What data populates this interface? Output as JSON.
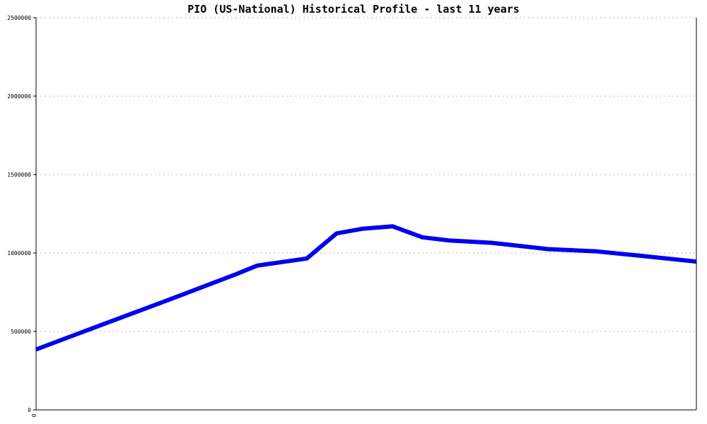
{
  "chart_data": {
    "type": "line",
    "title": "PIO (US-National) Historical Profile - last 11 years",
    "xlabel": "",
    "ylabel": "",
    "ylim": [
      0,
      2500000
    ],
    "y_ticks": [
      0,
      500000,
      1000000,
      1500000,
      2000000,
      2500000
    ],
    "y_tick_labels": [
      "0",
      "500000",
      "1000000",
      "1500000",
      "2000000",
      "2500000"
    ],
    "x_tick_labels": [
      "0"
    ],
    "grid": true,
    "legend": "none",
    "colors": {
      "line": "#0000ee",
      "grid": "#b5b5b5",
      "axis": "#000000"
    },
    "series": [
      {
        "x": [
          0,
          0.095,
          0.2,
          0.3,
          0.335,
          0.41,
          0.455,
          0.495,
          0.54,
          0.585,
          0.625,
          0.69,
          0.775,
          0.85,
          0.92,
          1
        ],
        "values": [
          385000,
          535000,
          700000,
          860000,
          920000,
          965000,
          1125000,
          1155000,
          1170000,
          1100000,
          1080000,
          1065000,
          1025000,
          1010000,
          980000,
          945000
        ]
      }
    ]
  }
}
